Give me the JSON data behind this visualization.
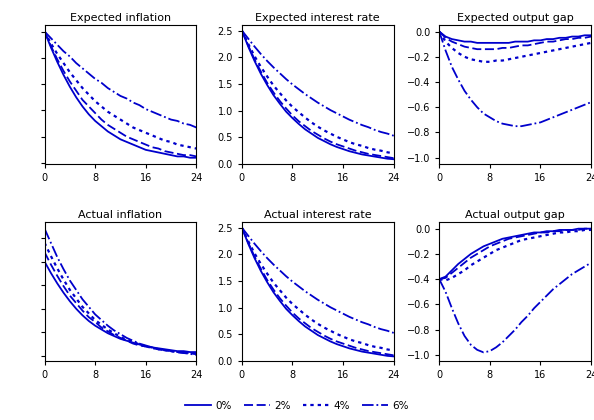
{
  "titles_top": [
    "Expected inflation",
    "Expected interest rate",
    "Expected output gap"
  ],
  "titles_bottom": [
    "Actual inflation",
    "Actual interest rate",
    "Actual output gap"
  ],
  "color": "#0000cc",
  "x": [
    0,
    1,
    2,
    3,
    4,
    5,
    6,
    7,
    8,
    9,
    10,
    11,
    12,
    13,
    14,
    15,
    16,
    17,
    18,
    19,
    20,
    21,
    22,
    23,
    24
  ],
  "top_inflation_0": [
    1.0,
    0.88,
    0.77,
    0.67,
    0.58,
    0.5,
    0.43,
    0.37,
    0.32,
    0.28,
    0.24,
    0.21,
    0.18,
    0.16,
    0.14,
    0.12,
    0.1,
    0.09,
    0.08,
    0.07,
    0.06,
    0.05,
    0.05,
    0.04,
    0.04
  ],
  "top_inflation_2": [
    1.0,
    0.89,
    0.79,
    0.7,
    0.62,
    0.55,
    0.48,
    0.43,
    0.38,
    0.33,
    0.29,
    0.26,
    0.23,
    0.2,
    0.18,
    0.16,
    0.14,
    0.12,
    0.11,
    0.09,
    0.08,
    0.07,
    0.06,
    0.06,
    0.05
  ],
  "top_inflation_4": [
    1.0,
    0.91,
    0.83,
    0.76,
    0.69,
    0.63,
    0.57,
    0.52,
    0.47,
    0.43,
    0.39,
    0.36,
    0.33,
    0.3,
    0.27,
    0.25,
    0.23,
    0.21,
    0.19,
    0.17,
    0.16,
    0.14,
    0.13,
    0.12,
    0.11
  ],
  "top_inflation_6": [
    1.0,
    0.95,
    0.9,
    0.85,
    0.81,
    0.76,
    0.72,
    0.68,
    0.64,
    0.61,
    0.57,
    0.54,
    0.51,
    0.49,
    0.46,
    0.44,
    0.41,
    0.39,
    0.37,
    0.35,
    0.33,
    0.32,
    0.3,
    0.29,
    0.27
  ],
  "top_interest_0": [
    2.5,
    2.2,
    1.93,
    1.69,
    1.48,
    1.29,
    1.13,
    0.98,
    0.86,
    0.75,
    0.65,
    0.57,
    0.49,
    0.43,
    0.37,
    0.32,
    0.28,
    0.24,
    0.21,
    0.18,
    0.16,
    0.14,
    0.12,
    0.1,
    0.09
  ],
  "top_interest_2": [
    2.5,
    2.22,
    1.96,
    1.73,
    1.52,
    1.34,
    1.18,
    1.04,
    0.91,
    0.8,
    0.71,
    0.62,
    0.55,
    0.48,
    0.42,
    0.37,
    0.33,
    0.29,
    0.25,
    0.22,
    0.19,
    0.17,
    0.15,
    0.13,
    0.11
  ],
  "top_interest_4": [
    2.5,
    2.25,
    2.02,
    1.82,
    1.64,
    1.47,
    1.33,
    1.19,
    1.07,
    0.97,
    0.87,
    0.78,
    0.7,
    0.63,
    0.57,
    0.51,
    0.46,
    0.41,
    0.37,
    0.34,
    0.3,
    0.27,
    0.25,
    0.22,
    0.2
  ],
  "top_interest_6": [
    2.5,
    2.35,
    2.2,
    2.06,
    1.93,
    1.81,
    1.7,
    1.59,
    1.49,
    1.4,
    1.31,
    1.23,
    1.15,
    1.08,
    1.01,
    0.95,
    0.89,
    0.83,
    0.78,
    0.73,
    0.69,
    0.64,
    0.6,
    0.57,
    0.53
  ],
  "top_outgap_0": [
    0.0,
    -0.04,
    -0.06,
    -0.07,
    -0.08,
    -0.08,
    -0.09,
    -0.09,
    -0.09,
    -0.09,
    -0.09,
    -0.09,
    -0.08,
    -0.08,
    -0.08,
    -0.07,
    -0.07,
    -0.06,
    -0.06,
    -0.05,
    -0.05,
    -0.04,
    -0.04,
    -0.03,
    -0.03
  ],
  "top_outgap_2": [
    0.0,
    -0.05,
    -0.08,
    -0.1,
    -0.12,
    -0.13,
    -0.14,
    -0.14,
    -0.14,
    -0.14,
    -0.13,
    -0.13,
    -0.12,
    -0.11,
    -0.11,
    -0.1,
    -0.09,
    -0.08,
    -0.08,
    -0.07,
    -0.06,
    -0.06,
    -0.05,
    -0.05,
    -0.04
  ],
  "top_outgap_4": [
    0.0,
    -0.08,
    -0.13,
    -0.17,
    -0.2,
    -0.22,
    -0.23,
    -0.24,
    -0.24,
    -0.23,
    -0.23,
    -0.22,
    -0.21,
    -0.2,
    -0.19,
    -0.18,
    -0.17,
    -0.16,
    -0.15,
    -0.14,
    -0.13,
    -0.12,
    -0.11,
    -0.1,
    -0.09
  ],
  "top_outgap_6": [
    0.0,
    -0.15,
    -0.28,
    -0.38,
    -0.47,
    -0.54,
    -0.6,
    -0.65,
    -0.68,
    -0.71,
    -0.73,
    -0.74,
    -0.75,
    -0.75,
    -0.74,
    -0.73,
    -0.72,
    -0.7,
    -0.68,
    -0.66,
    -0.64,
    -0.62,
    -0.6,
    -0.58,
    -0.56
  ],
  "bot_inflation_0": [
    1.0,
    0.88,
    0.77,
    0.67,
    0.58,
    0.5,
    0.43,
    0.37,
    0.32,
    0.28,
    0.24,
    0.21,
    0.18,
    0.16,
    0.14,
    0.12,
    0.1,
    0.09,
    0.08,
    0.07,
    0.06,
    0.05,
    0.05,
    0.04,
    0.04
  ],
  "bot_inflation_2": [
    1.1,
    0.97,
    0.85,
    0.74,
    0.64,
    0.56,
    0.48,
    0.41,
    0.36,
    0.3,
    0.26,
    0.22,
    0.19,
    0.16,
    0.13,
    0.11,
    0.1,
    0.08,
    0.07,
    0.06,
    0.05,
    0.04,
    0.03,
    0.03,
    0.02
  ],
  "bot_inflation_4": [
    1.2,
    1.06,
    0.93,
    0.81,
    0.7,
    0.61,
    0.52,
    0.45,
    0.38,
    0.33,
    0.28,
    0.24,
    0.2,
    0.17,
    0.15,
    0.12,
    0.1,
    0.09,
    0.07,
    0.06,
    0.05,
    0.04,
    0.04,
    0.03,
    0.02
  ],
  "bot_inflation_6": [
    1.35,
    1.2,
    1.05,
    0.92,
    0.8,
    0.7,
    0.6,
    0.52,
    0.44,
    0.38,
    0.32,
    0.27,
    0.23,
    0.19,
    0.16,
    0.13,
    0.11,
    0.09,
    0.07,
    0.06,
    0.05,
    0.04,
    0.03,
    0.02,
    0.01
  ],
  "bot_interest_0": [
    2.5,
    2.2,
    1.93,
    1.69,
    1.48,
    1.29,
    1.13,
    0.98,
    0.86,
    0.75,
    0.65,
    0.57,
    0.49,
    0.43,
    0.37,
    0.32,
    0.28,
    0.24,
    0.21,
    0.18,
    0.16,
    0.14,
    0.12,
    0.1,
    0.09
  ],
  "bot_interest_2": [
    2.5,
    2.22,
    1.96,
    1.73,
    1.52,
    1.34,
    1.18,
    1.04,
    0.91,
    0.8,
    0.71,
    0.62,
    0.55,
    0.48,
    0.42,
    0.37,
    0.33,
    0.29,
    0.25,
    0.22,
    0.19,
    0.17,
    0.15,
    0.13,
    0.11
  ],
  "bot_interest_4": [
    2.5,
    2.25,
    2.02,
    1.82,
    1.64,
    1.47,
    1.33,
    1.19,
    1.07,
    0.97,
    0.87,
    0.78,
    0.7,
    0.63,
    0.57,
    0.51,
    0.46,
    0.41,
    0.37,
    0.34,
    0.3,
    0.27,
    0.25,
    0.22,
    0.2
  ],
  "bot_interest_6": [
    2.5,
    2.35,
    2.2,
    2.06,
    1.93,
    1.81,
    1.7,
    1.59,
    1.49,
    1.4,
    1.31,
    1.23,
    1.15,
    1.08,
    1.01,
    0.95,
    0.89,
    0.83,
    0.78,
    0.73,
    0.69,
    0.64,
    0.6,
    0.57,
    0.53
  ],
  "bot_outgap_0": [
    -0.4,
    -0.38,
    -0.33,
    -0.28,
    -0.24,
    -0.2,
    -0.17,
    -0.14,
    -0.12,
    -0.1,
    -0.08,
    -0.07,
    -0.06,
    -0.05,
    -0.04,
    -0.03,
    -0.03,
    -0.02,
    -0.02,
    -0.01,
    -0.01,
    -0.01,
    0.0,
    0.0,
    0.0
  ],
  "bot_outgap_2": [
    -0.4,
    -0.39,
    -0.35,
    -0.31,
    -0.27,
    -0.23,
    -0.2,
    -0.17,
    -0.14,
    -0.12,
    -0.1,
    -0.08,
    -0.07,
    -0.06,
    -0.05,
    -0.04,
    -0.03,
    -0.03,
    -0.02,
    -0.02,
    -0.01,
    -0.01,
    -0.01,
    0.0,
    0.0
  ],
  "bot_outgap_4": [
    -0.4,
    -0.41,
    -0.39,
    -0.36,
    -0.33,
    -0.29,
    -0.26,
    -0.23,
    -0.2,
    -0.17,
    -0.15,
    -0.13,
    -0.11,
    -0.09,
    -0.08,
    -0.07,
    -0.06,
    -0.05,
    -0.04,
    -0.03,
    -0.03,
    -0.02,
    -0.02,
    -0.01,
    -0.01
  ],
  "bot_outgap_6": [
    -0.4,
    -0.5,
    -0.63,
    -0.75,
    -0.85,
    -0.92,
    -0.96,
    -0.98,
    -0.97,
    -0.94,
    -0.9,
    -0.85,
    -0.8,
    -0.74,
    -0.69,
    -0.63,
    -0.58,
    -0.53,
    -0.48,
    -0.44,
    -0.4,
    -0.36,
    -0.33,
    -0.3,
    -0.27
  ],
  "xlim": [
    0,
    24
  ],
  "xticks": [
    0,
    8,
    16,
    24
  ],
  "legend_labels": [
    "0%",
    "2%",
    "4%",
    "6%"
  ]
}
